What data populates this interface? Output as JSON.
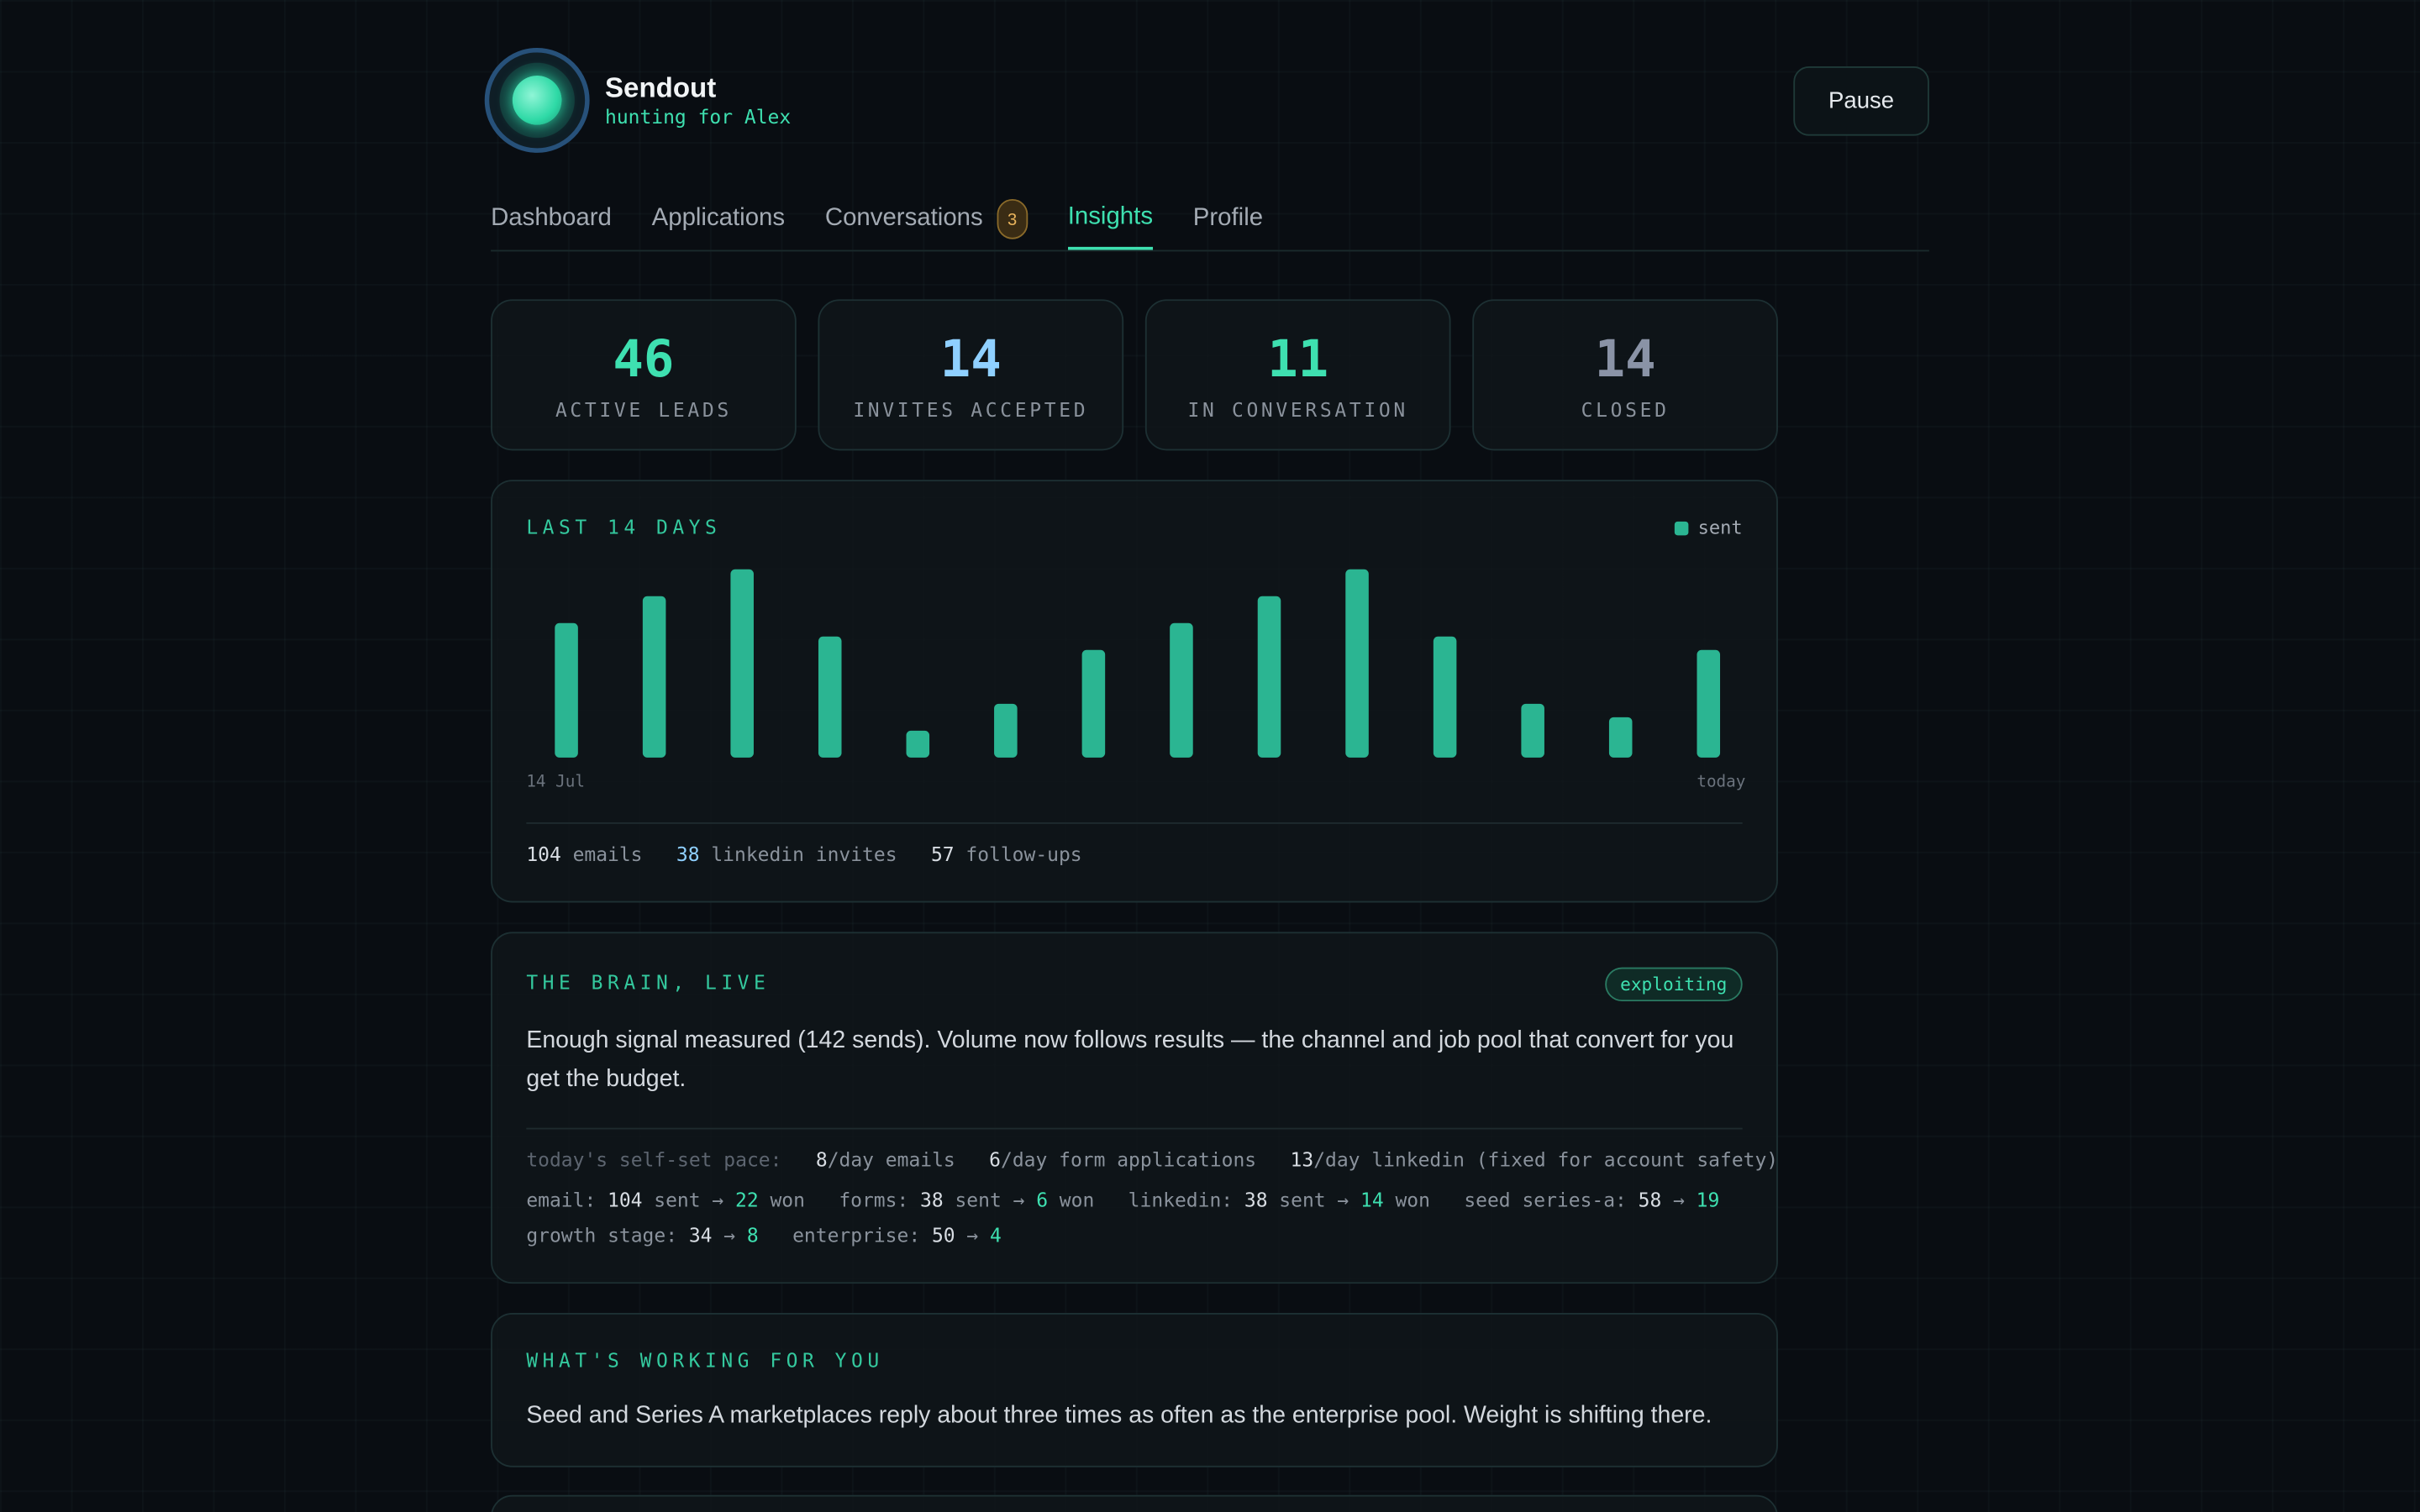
{
  "header": {
    "app_name": "Sendout",
    "subtitle": "hunting for Alex",
    "button": "Pause"
  },
  "nav": {
    "items": [
      {
        "label": "Dashboard"
      },
      {
        "label": "Applications"
      },
      {
        "label": "Conversations",
        "badge": 3
      },
      {
        "label": "Insights",
        "active": true
      },
      {
        "label": "Profile"
      }
    ]
  },
  "stats": [
    {
      "value": 46,
      "label": "ACTIVE LEADS",
      "color": "#3ee0b0"
    },
    {
      "value": 14,
      "label": "INVITES ACCEPTED",
      "color": "#8fd0ff"
    },
    {
      "value": 11,
      "label": "IN CONVERSATION",
      "color": "#3ee0b0"
    },
    {
      "value": 14,
      "label": "CLOSED",
      "color": "#8a93a6"
    }
  ],
  "chart_data": {
    "type": "bar",
    "title": "LAST 14 DAYS",
    "categories": [
      "14 Jul",
      null,
      null,
      null,
      null,
      null,
      null,
      null,
      null,
      null,
      null,
      null,
      null,
      "today"
    ],
    "series": [
      {
        "name": "sent",
        "color": "#2bb592",
        "values": [
          10,
          12,
          14,
          9,
          2,
          4,
          8,
          10,
          12,
          14,
          9,
          4,
          3,
          8
        ]
      }
    ]
  },
  "activity_totals": [
    {
      "value": 104,
      "label": "emails",
      "color": "#d8dde3"
    },
    {
      "value": 38,
      "label": "linkedin invites",
      "color": "#8fd0ff"
    },
    {
      "value": 57,
      "label": "follow-ups",
      "color": "#d8dde3"
    }
  ],
  "brain": {
    "title": "THE BRAIN, LIVE",
    "status": "exploiting",
    "summary": "Enough signal measured (142 sends). Volume now follows results — the channel and job pool that convert for you get the budget.",
    "pace_label": "today's self-set pace:",
    "pace": [
      {
        "value": 8,
        "label": "/day emails"
      },
      {
        "value": 6,
        "label": "/day form applications"
      },
      {
        "value": 13,
        "label": "/day linkedin (fixed for account safety)"
      }
    ],
    "lines": [
      [
        [
          {
            "text": "email:",
            "tone": "dim"
          },
          {
            "text": 104,
            "tone": "bright"
          },
          {
            "text": "sent →",
            "tone": "dim"
          },
          {
            "text": 22,
            "tone": "accent"
          },
          {
            "text": "won",
            "tone": "dim"
          }
        ],
        [
          {
            "text": "forms:",
            "tone": "dim"
          },
          {
            "text": 38,
            "tone": "bright"
          },
          {
            "text": "sent →",
            "tone": "dim"
          },
          {
            "text": 6,
            "tone": "accent"
          },
          {
            "text": "won",
            "tone": "dim"
          }
        ],
        [
          {
            "text": "linkedin:",
            "tone": "dim"
          },
          {
            "text": 38,
            "tone": "bright"
          },
          {
            "text": "sent →",
            "tone": "dim"
          },
          {
            "text": 14,
            "tone": "accent"
          },
          {
            "text": "won",
            "tone": "dim"
          }
        ],
        [
          {
            "text": "seed series-a:",
            "tone": "dim"
          },
          {
            "text": 58,
            "tone": "bright"
          },
          {
            "text": "→",
            "tone": "dim"
          },
          {
            "text": 19,
            "tone": "accent"
          }
        ]
      ],
      [
        [
          {
            "text": "growth stage:",
            "tone": "dim"
          },
          {
            "text": 34,
            "tone": "bright"
          },
          {
            "text": "→",
            "tone": "dim"
          },
          {
            "text": 8,
            "tone": "accent"
          }
        ],
        [
          {
            "text": "enterprise:",
            "tone": "dim"
          },
          {
            "text": 50,
            "tone": "bright"
          },
          {
            "text": "→",
            "tone": "dim"
          },
          {
            "text": 4,
            "tone": "accent"
          }
        ]
      ]
    ]
  },
  "working": {
    "title": "WHAT'S WORKING FOR YOU",
    "text": "Seed and Series A marketplaces reply about three times as often as the enterprise pool. Weight is shifting there."
  }
}
